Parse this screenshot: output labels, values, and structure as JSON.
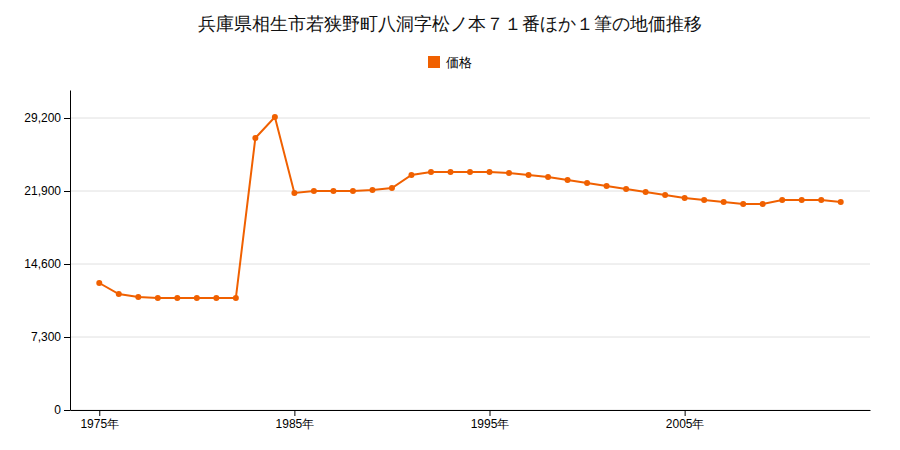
{
  "chart_data": {
    "type": "line",
    "title": "兵庫県相生市若狭野町八洞字松ノ本７１番ほか１筆の地価推移",
    "x": [
      1975,
      1976,
      1977,
      1978,
      1979,
      1980,
      1981,
      1982,
      1983,
      1984,
      1985,
      1986,
      1987,
      1988,
      1989,
      1990,
      1991,
      1992,
      1993,
      1994,
      1995,
      1996,
      1997,
      1998,
      1999,
      2000,
      2001,
      2002,
      2003,
      2004,
      2005,
      2006,
      2007,
      2008,
      2009,
      2010,
      2011,
      2012,
      2013
    ],
    "series": [
      {
        "name": "価格",
        "color": "#f06000",
        "marker": "circle",
        "line_style": "solid",
        "values": [
          12700,
          11600,
          11300,
          11200,
          11200,
          11200,
          11200,
          11200,
          27200,
          29300,
          21700,
          21900,
          21900,
          21900,
          22000,
          22200,
          23500,
          23800,
          23800,
          23800,
          23800,
          23700,
          23500,
          23300,
          23000,
          22700,
          22400,
          22100,
          21800,
          21500,
          21200,
          21000,
          20800,
          20600,
          20600,
          21000,
          21000,
          21000,
          20800
        ]
      }
    ],
    "xlim": [
      1973.5,
      2014.5
    ],
    "xticks": [
      {
        "value": 1975,
        "label": "1975年"
      },
      {
        "value": 1985,
        "label": "1985年"
      },
      {
        "value": 1995,
        "label": "1995年"
      },
      {
        "value": 2005,
        "label": "2005年"
      }
    ],
    "ylim": [
      0,
      32000
    ],
    "yticks": [
      0,
      {
        "value": 7300,
        "label": "7,300"
      },
      {
        "value": 14600,
        "label": "14,600"
      },
      {
        "value": 21900,
        "label": "21,900"
      },
      {
        "value": 29200,
        "label": "29,200"
      }
    ],
    "grid": true,
    "legend": "top"
  }
}
